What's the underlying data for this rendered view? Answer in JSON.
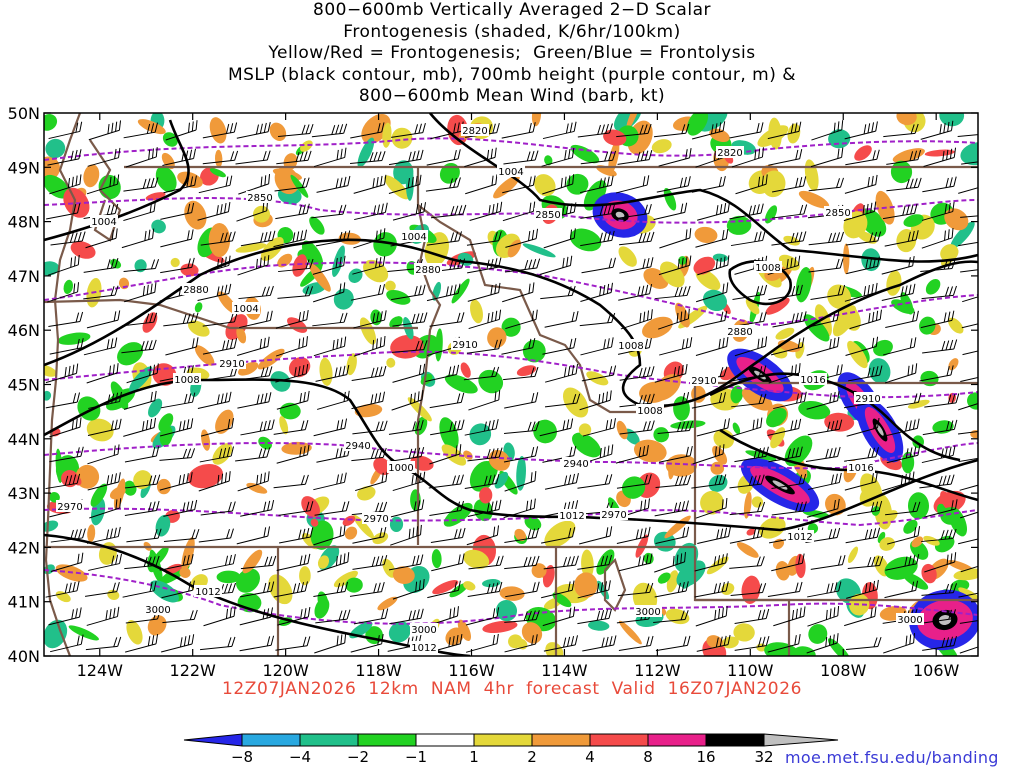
{
  "title_lines": [
    "800−600mb Vertically Averaged 2−D Scalar",
    "Frontogenesis (shaded, K/6hr/100km)",
    "Yellow/Red = Frontogenesis;  Green/Blue = Frontolysis",
    "MSLP (black contour, mb), 700mb height (purple contour, m) &",
    "800−600mb Mean Wind (barb, kt)"
  ],
  "valid_text": "12Z07JAN2026  12km  NAM  4hr  forecast  Valid  16Z07JAN2026",
  "credit": "moe.met.fsu.edu/banding",
  "map": {
    "lat_range": [
      40,
      50
    ],
    "lon_range": [
      -125.2,
      -105.1
    ],
    "lat_labels": [
      "50N",
      "49N",
      "48N",
      "47N",
      "46N",
      "45N",
      "44N",
      "43N",
      "42N",
      "41N",
      "40N"
    ],
    "lon_labels": [
      "124W",
      "122W",
      "120W",
      "118W",
      "116W",
      "114W",
      "112W",
      "110W",
      "108W",
      "106W"
    ],
    "height_labels": [
      "2820",
      "2820",
      "2850",
      "2850",
      "2850",
      "2880",
      "2880",
      "2880",
      "2910",
      "2910",
      "2910",
      "2910",
      "2940",
      "2940",
      "2970",
      "2970",
      "2970",
      "3000",
      "3000",
      "3000",
      "3000"
    ],
    "mslp_labels": [
      "1004",
      "1004",
      "1004",
      "1004",
      "1008",
      "1008",
      "1008",
      "1008",
      "1000",
      "1012",
      "1012",
      "1012",
      "1012",
      "1016",
      "1016"
    ]
  },
  "colorbar": {
    "labels": [
      "−8",
      "−4",
      "−2",
      "−1",
      "1",
      "2",
      "4",
      "8",
      "16",
      "32"
    ],
    "colors": [
      "#2626e8",
      "#28a8e0",
      "#21c08a",
      "#22d222",
      "#ffffff",
      "#e4d83a",
      "#f09a3a",
      "#f54b4b",
      "#e8208a",
      "#000000",
      "#c0c0c0"
    ]
  }
}
